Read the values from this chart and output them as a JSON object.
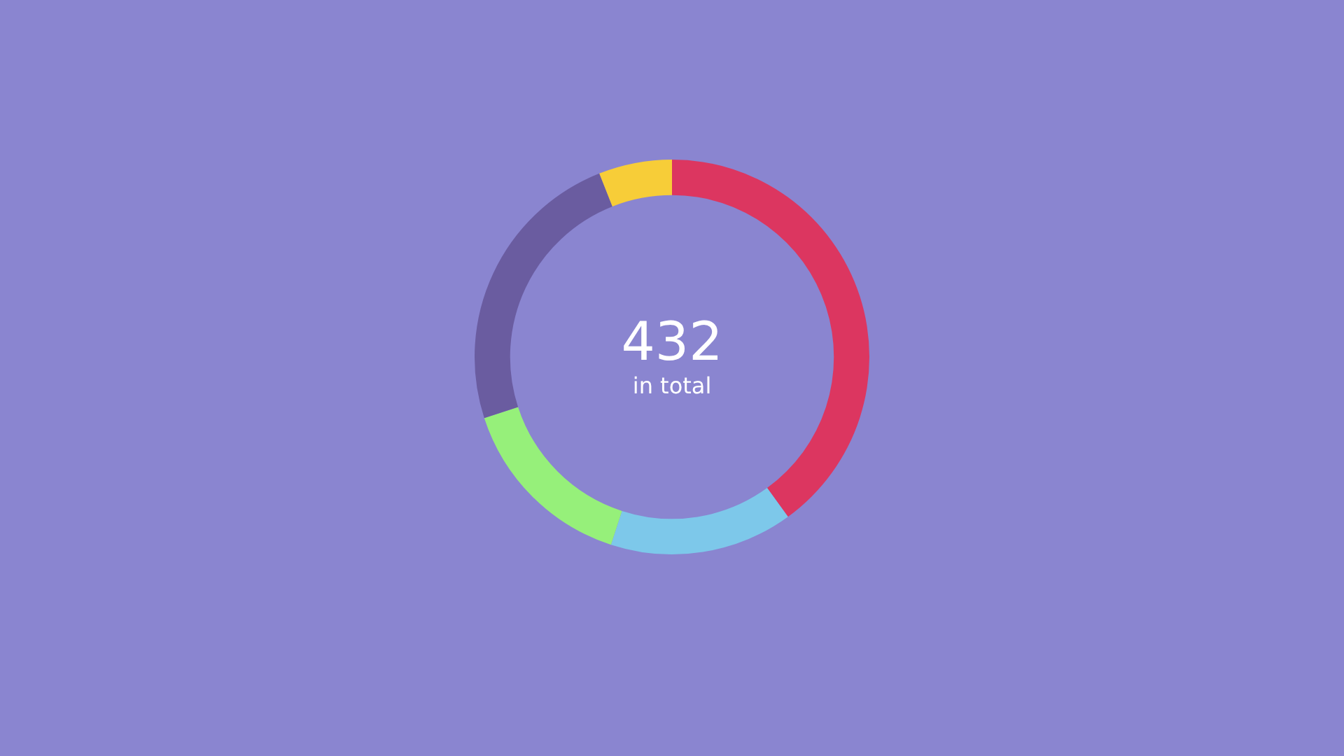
{
  "chart_data": {
    "type": "donut",
    "categories": [
      null,
      null,
      null,
      null,
      null
    ],
    "values": [
      40,
      15,
      15,
      24,
      6
    ],
    "colors": [
      "#dc3660",
      "#7dc8ea",
      "#96f07a",
      "#6a5ca0",
      "#f7cd38"
    ],
    "annotations": [
      "432",
      "in total"
    ],
    "legend": false
  }
}
